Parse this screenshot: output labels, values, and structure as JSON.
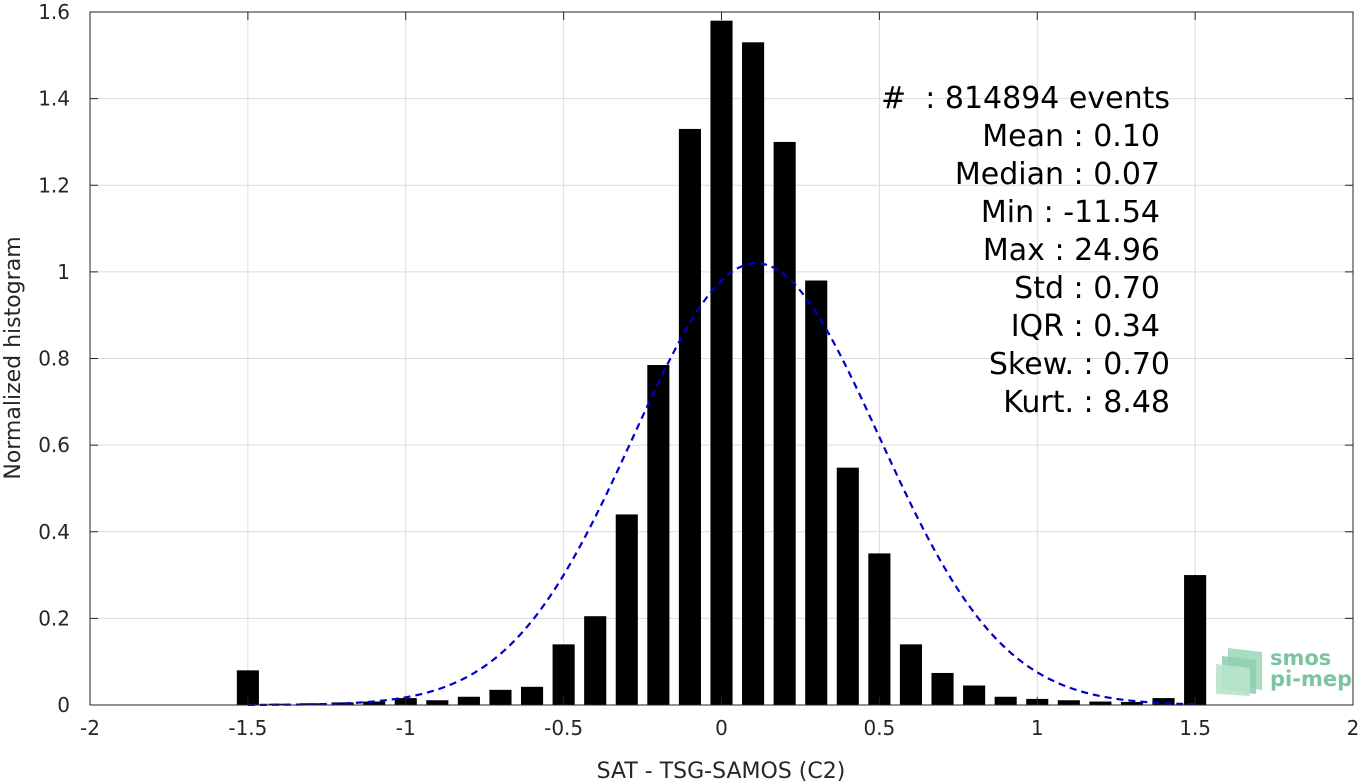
{
  "chart_data": {
    "type": "bar",
    "xlabel": "SAT - TSG-SAMOS (C2)",
    "ylabel": "Normalized histogram",
    "xlim": [
      -2,
      2
    ],
    "ylim": [
      0,
      1.6
    ],
    "xticks": [
      -2,
      -1.5,
      -1,
      -0.5,
      0,
      0.5,
      1,
      1.5,
      2
    ],
    "xtick_labels": [
      "-2",
      "-1.5",
      "-1",
      "-0.5",
      "0",
      "0.5",
      "1",
      "1.5",
      "2"
    ],
    "yticks": [
      0,
      0.2,
      0.4,
      0.6,
      0.8,
      1,
      1.2,
      1.4,
      1.6
    ],
    "ytick_labels": [
      "0",
      "0.2",
      "0.4",
      "0.6",
      "0.8",
      "1",
      "1.2",
      "1.4",
      "1.6"
    ],
    "grid": true,
    "bar_color": "#000000",
    "bar_width": 0.07,
    "bars": [
      {
        "x": -1.5,
        "y": 0.08
      },
      {
        "x": -1.4,
        "y": 0.003
      },
      {
        "x": -1.3,
        "y": 0.004
      },
      {
        "x": -1.2,
        "y": 0.006
      },
      {
        "x": -1.1,
        "y": 0.008
      },
      {
        "x": -1.0,
        "y": 0.016
      },
      {
        "x": -0.9,
        "y": 0.011
      },
      {
        "x": -0.8,
        "y": 0.019
      },
      {
        "x": -0.7,
        "y": 0.035
      },
      {
        "x": -0.6,
        "y": 0.042
      },
      {
        "x": -0.5,
        "y": 0.14
      },
      {
        "x": -0.4,
        "y": 0.205
      },
      {
        "x": -0.3,
        "y": 0.44
      },
      {
        "x": -0.2,
        "y": 0.785
      },
      {
        "x": -0.1,
        "y": 1.33
      },
      {
        "x": 0.0,
        "y": 1.58
      },
      {
        "x": 0.1,
        "y": 1.53
      },
      {
        "x": 0.2,
        "y": 1.3
      },
      {
        "x": 0.3,
        "y": 0.98
      },
      {
        "x": 0.4,
        "y": 0.548
      },
      {
        "x": 0.5,
        "y": 0.35
      },
      {
        "x": 0.6,
        "y": 0.14
      },
      {
        "x": 0.7,
        "y": 0.074
      },
      {
        "x": 0.8,
        "y": 0.045
      },
      {
        "x": 0.9,
        "y": 0.019
      },
      {
        "x": 1.0,
        "y": 0.014
      },
      {
        "x": 1.1,
        "y": 0.011
      },
      {
        "x": 1.2,
        "y": 0.008
      },
      {
        "x": 1.3,
        "y": 0.007
      },
      {
        "x": 1.4,
        "y": 0.016
      },
      {
        "x": 1.5,
        "y": 0.3
      }
    ],
    "fit_curve": {
      "type": "gaussian",
      "style": "dashed",
      "color": "#0000cc",
      "mean": 0.11,
      "std": 0.39,
      "peak": 1.02,
      "x_range": [
        -1.5,
        1.5
      ]
    },
    "annotations": [
      "#  : 814894 events",
      "Mean : 0.10",
      "Median : 0.07",
      "Min : -11.54",
      "Max : 24.96",
      "Std : 0.70",
      "IQR : 0.34",
      "Skew. : 0.70",
      "Kurt. : 8.48"
    ]
  },
  "logo": {
    "line1": "smos",
    "line2": "pi-mep",
    "color": "#7cc4a0"
  }
}
